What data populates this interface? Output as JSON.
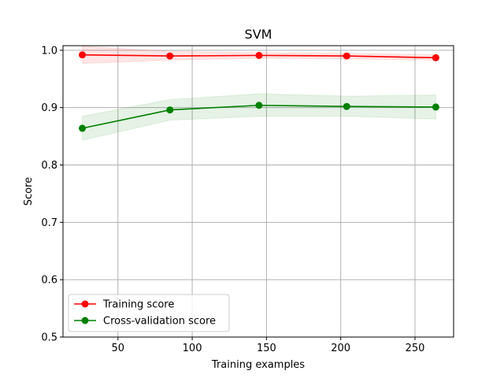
{
  "chart_data": {
    "type": "line",
    "title": "SVM",
    "xlabel": "Training examples",
    "ylabel": "Score",
    "xlim": [
      13,
      276
    ],
    "ylim": [
      0.5,
      1.008
    ],
    "xticks": [
      50,
      100,
      150,
      200,
      250
    ],
    "xtick_labels": [
      "50",
      "100",
      "150",
      "200",
      "250"
    ],
    "yticks": [
      0.5,
      0.6,
      0.7,
      0.8,
      0.9,
      1.0
    ],
    "ytick_labels": [
      "0.5",
      "0.6",
      "0.7",
      "0.8",
      "0.9",
      "1.0"
    ],
    "grid": true,
    "legend_position": "lower-left",
    "x": [
      26,
      85,
      145,
      204,
      264
    ],
    "series": [
      {
        "name": "Training score",
        "color": "#ff0000",
        "values": [
          0.992,
          0.99,
          0.991,
          0.99,
          0.987
        ],
        "band_lower": [
          0.977,
          0.983,
          0.986,
          0.985,
          0.983
        ],
        "band_upper": [
          1.007,
          0.998,
          0.996,
          0.995,
          0.992
        ]
      },
      {
        "name": "Cross-validation score",
        "color": "#008000",
        "values": [
          0.864,
          0.896,
          0.904,
          0.902,
          0.901
        ],
        "band_lower": [
          0.843,
          0.878,
          0.885,
          0.885,
          0.88
        ],
        "band_upper": [
          0.885,
          0.914,
          0.924,
          0.92,
          0.922
        ]
      }
    ]
  }
}
